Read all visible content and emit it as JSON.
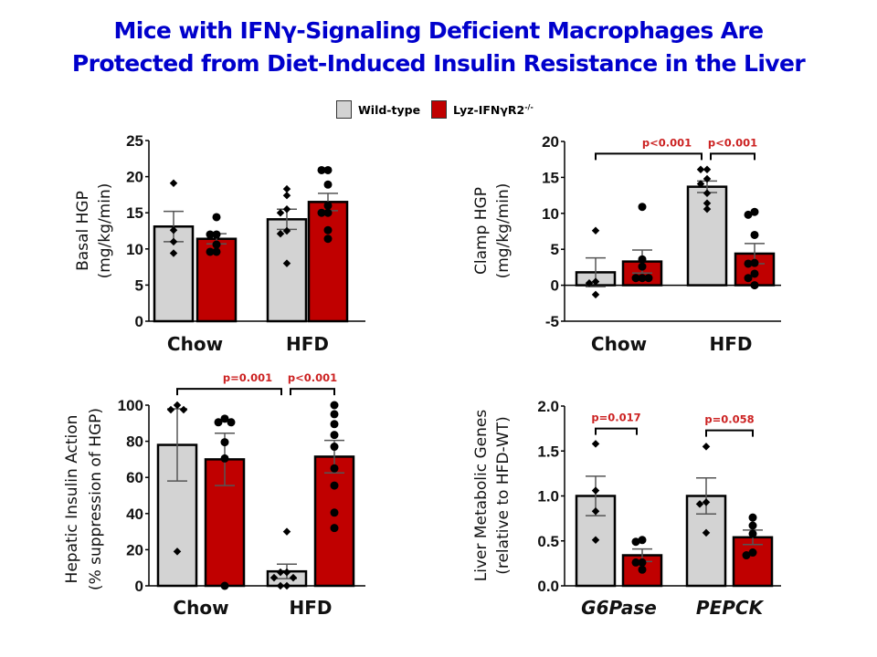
{
  "title": {
    "line1": "Mice with IFNγ-Signaling Deficient Macrophages Are",
    "line2": "Protected from Diet-Induced Insulin Resistance in the Liver"
  },
  "legend": {
    "items": [
      {
        "label": "Wild-type",
        "sup": "",
        "color": "#d3d3d3"
      },
      {
        "label": "Lyz-IFNγR2",
        "sup": "-/-",
        "color": "#c00000"
      }
    ]
  },
  "colors": {
    "wt": "#d3d3d3",
    "ko": "#c00000",
    "pval": "#cc2222",
    "title": "#0000cc"
  },
  "chart_data": [
    {
      "type": "bar",
      "id": "basal",
      "title": "",
      "ylabel_lines": [
        "Basal HGP",
        "(mg/kg/min)"
      ],
      "xlabel": "",
      "categories": [
        "Chow",
        "HFD"
      ],
      "italic_categories": false,
      "ylim": [
        0,
        25
      ],
      "yticks": [
        0,
        5,
        10,
        15,
        20,
        25
      ],
      "ytick_labels": [
        "0",
        "5",
        "10",
        "15",
        "20",
        "25"
      ],
      "series": [
        {
          "name": "Wild-type",
          "values": [
            13.1,
            14.1
          ],
          "sem": [
            2.1,
            1.4
          ],
          "points": [
            [
              19.1,
              12.6,
              11.0,
              9.4
            ],
            [
              18.3,
              17.4,
              15.5,
              15.0,
              12.5,
              12.1,
              8.0
            ]
          ]
        },
        {
          "name": "Lyz-IFNγR2-/-",
          "values": [
            11.4,
            16.5
          ],
          "sem": [
            0.7,
            1.2
          ],
          "points": [
            [
              14.4,
              12.0,
              12.0,
              10.6,
              9.6,
              9.6
            ],
            [
              20.9,
              20.9,
              18.9,
              16.0,
              15.0,
              15.0,
              12.6,
              11.4
            ]
          ]
        }
      ],
      "annotations": []
    },
    {
      "type": "bar",
      "id": "clamp",
      "title": "",
      "ylabel_lines": [
        "Clamp HGP",
        "(mg/kg/min)"
      ],
      "xlabel": "",
      "categories": [
        "Chow",
        "HFD"
      ],
      "italic_categories": false,
      "ylim": [
        -5,
        20
      ],
      "yticks": [
        -5,
        0,
        5,
        10,
        15,
        20
      ],
      "ytick_labels": [
        "-5",
        "0",
        "5",
        "10",
        "15",
        "20"
      ],
      "series": [
        {
          "name": "Wild-type",
          "values": [
            1.8,
            13.7
          ],
          "sem": [
            2.0,
            0.8
          ],
          "points": [
            [
              7.6,
              0.5,
              0.3,
              -1.3
            ],
            [
              16.1,
              16.1,
              14.8,
              14.1,
              12.8,
              11.4,
              10.6
            ]
          ]
        },
        {
          "name": "Lyz-IFNγR2-/-",
          "values": [
            3.3,
            4.4
          ],
          "sem": [
            1.6,
            1.4
          ],
          "points": [
            [
              10.9,
              3.6,
              2.6,
              1.0,
              1.0,
              1.0
            ],
            [
              10.2,
              9.8,
              7.0,
              3.1,
              3.0,
              1.6,
              1.0,
              0.0
            ]
          ]
        }
      ],
      "annotations": [
        {
          "text": "p<0.001",
          "from": "0.wt",
          "to": "1.wt",
          "level": 18.3
        },
        {
          "text": "p<0.001",
          "from": "1.wt",
          "to": "1.ko",
          "level": 18.3
        }
      ]
    },
    {
      "type": "bar",
      "id": "hepatic",
      "title": "",
      "ylabel_lines": [
        "Hepatic Insulin Action",
        "(% suppression of HGP)"
      ],
      "xlabel": "",
      "categories": [
        "Chow",
        "HFD"
      ],
      "italic_categories": false,
      "ylim": [
        0,
        100
      ],
      "yticks": [
        0,
        20,
        40,
        60,
        80,
        100
      ],
      "ytick_labels": [
        "0",
        "20",
        "40",
        "60",
        "80",
        "100"
      ],
      "series": [
        {
          "name": "Wild-type",
          "values": [
            78,
            8
          ],
          "sem": [
            20,
            4
          ],
          "points": [
            [
              100,
              97.5,
              97.5,
              19
            ],
            [
              30,
              7.5,
              7.5,
              4.5,
              4.5,
              0,
              0
            ]
          ]
        },
        {
          "name": "Lyz-IFNγR2-/-",
          "values": [
            70,
            71.5
          ],
          "sem": [
            14.5,
            9
          ],
          "points": [
            [
              92.5,
              90.5,
              90.5,
              79.5,
              70.5,
              0
            ],
            [
              100,
              95,
              89.5,
              83.5,
              77,
              65,
              55.5,
              40.5,
              32
            ]
          ]
        }
      ],
      "annotations": [
        {
          "text": "p=0.001",
          "from": "0.wt",
          "to": "1.wt",
          "level": 109
        },
        {
          "text": "p<0.001",
          "from": "1.wt",
          "to": "1.ko",
          "level": 109
        }
      ]
    },
    {
      "type": "bar",
      "id": "genes",
      "title": "",
      "ylabel_lines": [
        "Liver Metabolic Genes",
        "(relative to HFD-WT)"
      ],
      "xlabel": "",
      "categories": [
        "G6Pase",
        "PEPCK"
      ],
      "italic_categories": true,
      "ylim": [
        0,
        2.0
      ],
      "yticks": [
        0,
        0.5,
        1.0,
        1.5,
        2.0
      ],
      "ytick_labels": [
        "0.0",
        "0.5",
        "1.0",
        "1.5",
        "2.0"
      ],
      "series": [
        {
          "name": "Wild-type",
          "values": [
            1.0,
            1.0
          ],
          "sem": [
            0.22,
            0.2
          ],
          "points": [
            [
              1.58,
              1.06,
              0.83,
              0.51
            ],
            [
              1.55,
              0.93,
              0.91,
              0.59
            ]
          ]
        },
        {
          "name": "Lyz-IFNγR2-/-",
          "values": [
            0.34,
            0.54
          ],
          "sem": [
            0.07,
            0.08
          ],
          "points": [
            [
              0.51,
              0.49,
              0.26,
              0.26,
              0.18
            ],
            [
              0.76,
              0.67,
              0.58,
              0.37,
              0.34
            ]
          ]
        }
      ],
      "annotations": [
        {
          "text": "p=0.017",
          "from": "0.wt",
          "to": "0.ko",
          "level": 1.75
        },
        {
          "text": "p=0.058",
          "from": "1.wt",
          "to": "1.ko",
          "level": 1.73
        }
      ]
    }
  ]
}
